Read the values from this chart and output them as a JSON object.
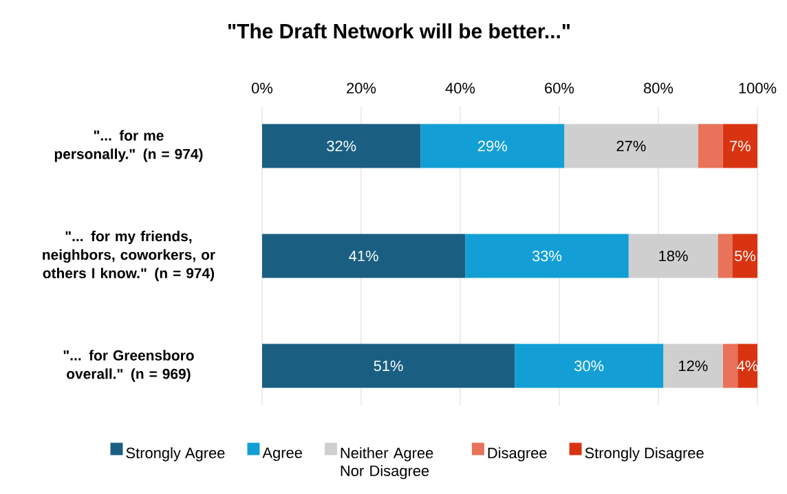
{
  "chart_data": {
    "type": "bar",
    "title": "\"The Draft Network will be better...\"",
    "orientation": "horizontal",
    "stacked": true,
    "grid": "x",
    "legend": "bottom",
    "categories": [
      "\"... for me personally.\" (n = 974)",
      "\"... for my friends, neighbors, coworkers, or others I know.\" (n = 974)",
      "\"...  for Greensboro overall.\" (n = 969)"
    ],
    "xlim": [
      0,
      100
    ],
    "xticks": [
      {
        "value": 0,
        "label": "0%"
      },
      {
        "value": 20,
        "label": "20%"
      },
      {
        "value": 40,
        "label": "40%"
      },
      {
        "value": 60,
        "label": "60%"
      },
      {
        "value": 80,
        "label": "80%"
      },
      {
        "value": 100,
        "label": "100%"
      }
    ],
    "series": [
      {
        "name": "Strongly Agree",
        "color": "#1a5f82",
        "values": [
          32,
          41,
          51
        ],
        "value_labels": [
          "32%",
          "41%",
          "51%"
        ]
      },
      {
        "name": "Agree",
        "color": "#139fd6",
        "values": [
          29,
          33,
          30
        ],
        "value_labels": [
          "29%",
          "33%",
          "30%"
        ]
      },
      {
        "name": "Neither Agree Nor Disagree",
        "color": "#cfcfcf",
        "values": [
          27,
          18,
          12
        ],
        "value_labels": [
          "27%",
          "18%",
          "12%"
        ]
      },
      {
        "name": "Disagree",
        "color": "#e8725a",
        "values": [
          5,
          3,
          3
        ],
        "value_labels": [
          null,
          null,
          null
        ]
      },
      {
        "name": "Strongly Disagree",
        "color": "#d93412",
        "values": [
          7,
          5,
          4
        ],
        "value_labels": [
          "7%",
          "5%",
          "4%"
        ]
      }
    ]
  }
}
